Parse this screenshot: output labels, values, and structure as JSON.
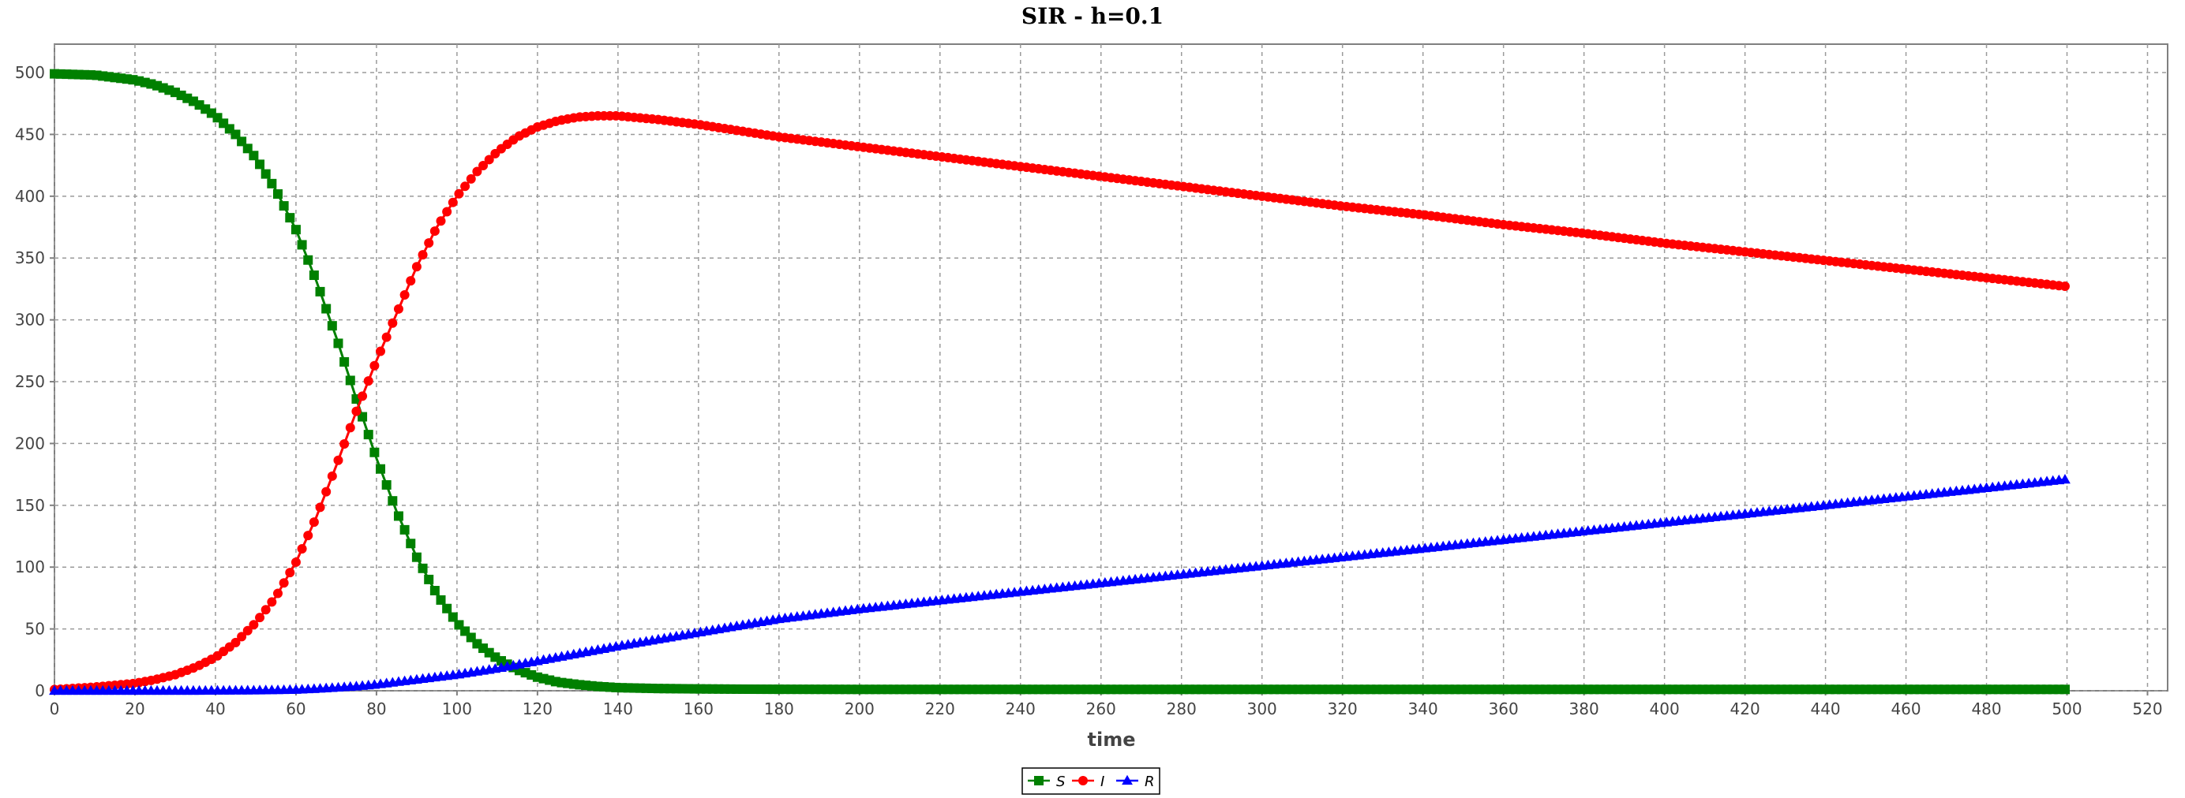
{
  "chart_data": {
    "type": "line",
    "title": "SIR - h=0.1",
    "xlabel": "time",
    "ylabel": "",
    "xlim": [
      0,
      525
    ],
    "ylim": [
      0,
      523
    ],
    "x_ticks": [
      0,
      20,
      40,
      60,
      80,
      100,
      120,
      140,
      160,
      180,
      200,
      220,
      240,
      260,
      280,
      300,
      320,
      340,
      360,
      380,
      400,
      420,
      440,
      460,
      480,
      500,
      520
    ],
    "y_ticks": [
      0,
      50,
      100,
      150,
      200,
      250,
      300,
      350,
      400,
      450,
      500
    ],
    "grid": true,
    "legend_position": "bottom-center",
    "x": [
      0,
      10,
      20,
      25,
      30,
      35,
      40,
      45,
      50,
      55,
      60,
      65,
      70,
      75,
      80,
      85,
      90,
      95,
      100,
      105,
      110,
      115,
      120,
      125,
      130,
      135,
      140,
      150,
      160,
      170,
      180,
      200,
      220,
      240,
      260,
      280,
      300,
      320,
      340,
      360,
      380,
      400,
      420,
      440,
      460,
      480,
      500
    ],
    "series": [
      {
        "name": "S",
        "color": "#008000",
        "marker": "square",
        "values": [
          499,
          498,
          494,
          490,
          484,
          476,
          465,
          450,
          431,
          405,
          373,
          332,
          286,
          236,
          188,
          145,
          108,
          78,
          55,
          38,
          26,
          17,
          11,
          7,
          5,
          3.5,
          2.5,
          1.8,
          1.5,
          1.3,
          1.2,
          1.1,
          1.1,
          1.1,
          1.1,
          1.1,
          1.1,
          1.1,
          1.1,
          1.1,
          1.1,
          1.1,
          1.1,
          1.1,
          1.1,
          1.1,
          1.1
        ]
      },
      {
        "name": "I",
        "color": "#ff0000",
        "marker": "circle",
        "values": [
          1,
          3,
          6,
          9,
          13,
          19,
          27,
          39,
          55,
          76,
          104,
          140,
          182,
          226,
          267,
          305,
          343,
          375,
          400,
          420,
          436,
          448,
          456,
          461,
          464,
          465,
          465,
          462,
          458,
          453,
          448,
          440,
          432,
          424,
          416,
          408,
          400,
          392,
          385,
          377,
          370,
          362,
          355,
          348,
          341,
          334,
          327
        ]
      },
      {
        "name": "R",
        "color": "#0000ff",
        "marker": "triangle",
        "values": [
          0,
          0,
          0,
          0,
          0,
          0,
          0.1,
          0.2,
          0.3,
          0.5,
          0.8,
          1.5,
          2.5,
          3.5,
          5,
          7,
          9,
          11,
          13,
          15.5,
          18,
          21,
          24,
          27,
          30,
          33,
          36,
          41.5,
          47,
          52.5,
          58,
          66,
          73,
          80,
          87,
          94,
          101,
          108,
          115,
          122,
          129,
          136,
          143,
          150,
          157,
          164,
          171
        ]
      }
    ]
  }
}
